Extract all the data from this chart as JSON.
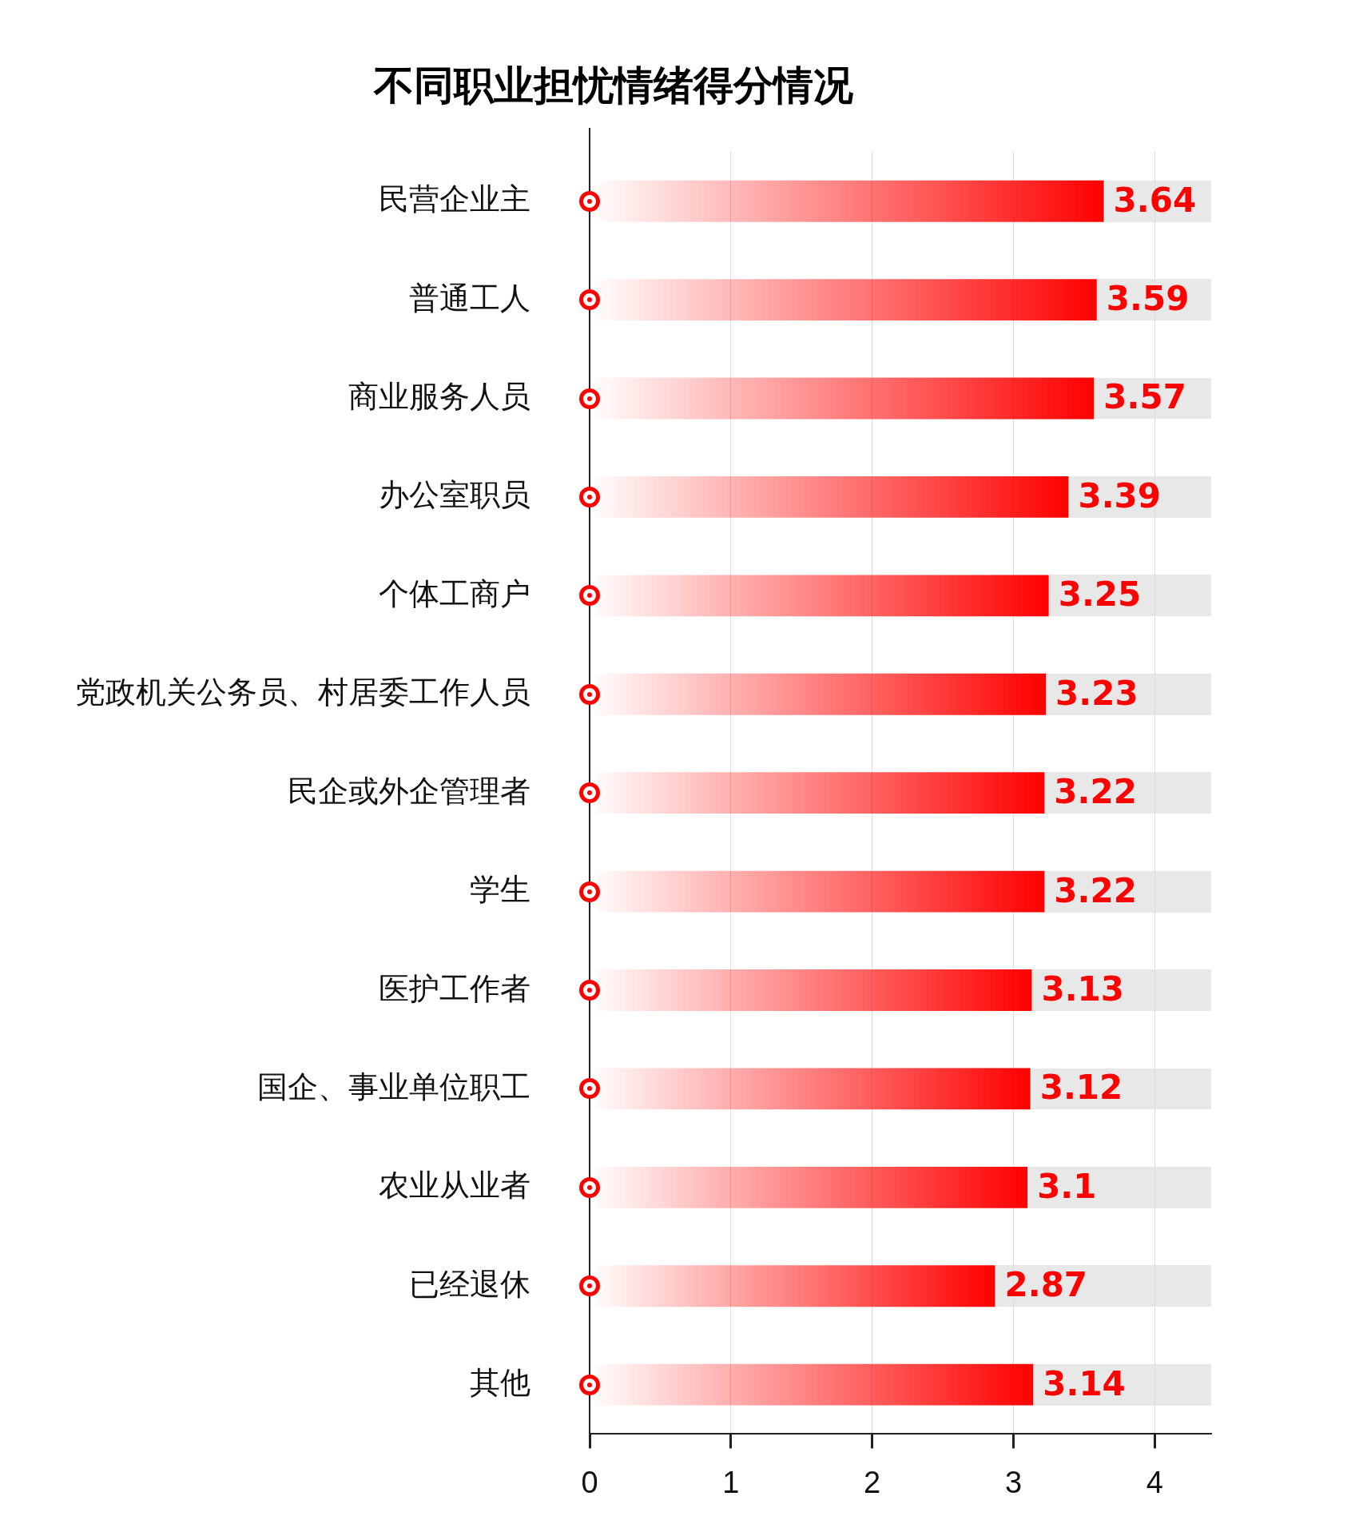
{
  "chart_data": {
    "type": "bar",
    "orientation": "horizontal",
    "title": "不同职业担忧情绪得分情况",
    "categories": [
      "民营企业主",
      "普通工人",
      "商业服务人员",
      "办公室职员",
      "个体工商户",
      "党政机关公务员、村居委工作人员",
      "民企或外企管理者",
      "学生",
      "医护工作者",
      "国企、事业单位职工",
      "农业从业者",
      "已经退休",
      "其他"
    ],
    "values": [
      3.64,
      3.59,
      3.57,
      3.39,
      3.25,
      3.23,
      3.22,
      3.22,
      3.13,
      3.12,
      3.1,
      2.87,
      3.14
    ],
    "color": "#ff0000",
    "xlim": [
      0,
      4.4
    ],
    "xticks": [
      0,
      1,
      2,
      3,
      4
    ],
    "grid": "x",
    "data_labels": true,
    "legend": false
  }
}
